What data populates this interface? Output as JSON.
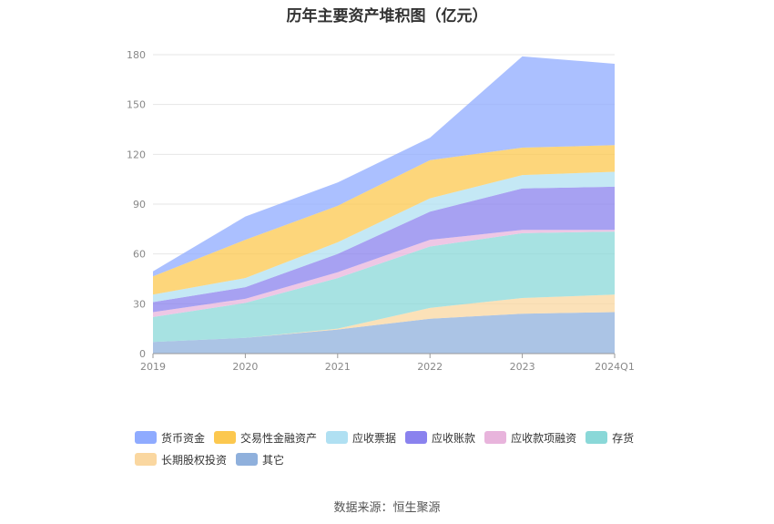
{
  "title": "历年主要资产堆积图（亿元）",
  "source": "数据来源：恒生聚源",
  "chart_data": {
    "type": "area",
    "stacked": true,
    "categories": [
      "2019",
      "2020",
      "2021",
      "2022",
      "2023",
      "2024Q1"
    ],
    "ylim": [
      0,
      180
    ],
    "yticks": [
      0,
      30,
      60,
      90,
      120,
      150,
      180
    ],
    "grid": true,
    "legend_position": "bottom",
    "series": [
      {
        "name": "其它",
        "color": "#8fb0dc",
        "values": [
          7,
          9.5,
          14.5,
          21,
          24,
          25
        ]
      },
      {
        "name": "长期股权投资",
        "color": "#fad7a0",
        "values": [
          0,
          0,
          0.5,
          6.5,
          9.5,
          10.5
        ]
      },
      {
        "name": "存货",
        "color": "#8ad8d8",
        "values": [
          15,
          21,
          30.5,
          37,
          39,
          38
        ]
      },
      {
        "name": "应收款项融资",
        "color": "#e8b4dc",
        "values": [
          3,
          2.5,
          3.5,
          4,
          2,
          1
        ]
      },
      {
        "name": "应收账款",
        "color": "#8a82ee",
        "values": [
          6,
          7,
          11,
          17,
          25,
          26
        ]
      },
      {
        "name": "应收票据",
        "color": "#b0e0f2",
        "values": [
          4.5,
          5.5,
          7,
          8,
          8,
          9
        ]
      },
      {
        "name": "交易性金融资产",
        "color": "#fcc84f",
        "values": [
          11,
          23,
          22,
          23,
          16.5,
          16
        ]
      },
      {
        "name": "货币资金",
        "color": "#8fabff",
        "values": [
          3,
          14,
          14,
          13.5,
          55,
          49
        ]
      }
    ]
  },
  "legend": {
    "items": [
      {
        "name": "货币资金",
        "color": "#8fabff"
      },
      {
        "name": "交易性金融资产",
        "color": "#fcc84f"
      },
      {
        "name": "应收票据",
        "color": "#b0e0f2"
      },
      {
        "name": "应收账款",
        "color": "#8a82ee"
      },
      {
        "name": "应收款项融资",
        "color": "#e8b4dc"
      },
      {
        "name": "存货",
        "color": "#8ad8d8"
      },
      {
        "name": "长期股权投资",
        "color": "#fad7a0"
      },
      {
        "name": "其它",
        "color": "#8fb0dc"
      }
    ]
  }
}
